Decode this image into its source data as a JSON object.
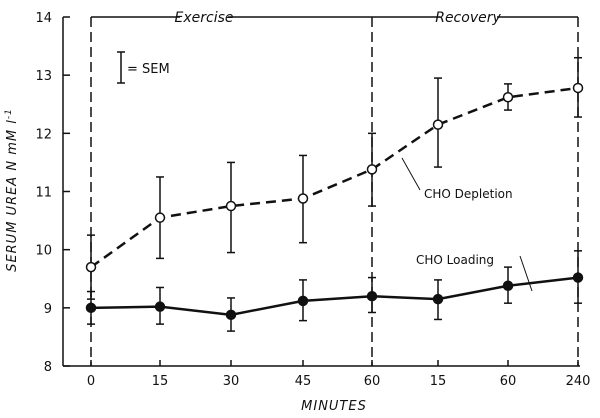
{
  "chart_data": {
    "type": "line",
    "title": "",
    "xlabel": "MINUTES",
    "ylabel": "SERUM UREA N mM l",
    "ylabel_superscript": "-1",
    "categories": [
      "0",
      "15",
      "30",
      "45",
      "60",
      "15",
      "60",
      "240"
    ],
    "phases": [
      {
        "label": "Exercise",
        "categories": [
          "0",
          "15",
          "30",
          "45",
          "60"
        ]
      },
      {
        "label": "Recovery",
        "categories": [
          "60",
          "15",
          "60",
          "240"
        ]
      }
    ],
    "ylim": [
      8,
      14
    ],
    "yticks": [
      8,
      9,
      10,
      11,
      12,
      13,
      14
    ],
    "grid": false,
    "error_legend": "= SEM",
    "series": [
      {
        "name": "CHO Depletion",
        "marker": "open-circle",
        "line": "dashed",
        "values": [
          9.7,
          10.55,
          10.75,
          10.88,
          11.38,
          12.15,
          12.62,
          12.78
        ],
        "sem_low": [
          9.15,
          9.85,
          9.95,
          10.12,
          10.75,
          11.42,
          12.4,
          12.28
        ],
        "sem_high": [
          10.25,
          11.25,
          11.5,
          11.62,
          12.0,
          12.95,
          12.85,
          13.3
        ]
      },
      {
        "name": "CHO Loading",
        "marker": "filled-circle",
        "line": "solid",
        "values": [
          9.0,
          9.02,
          8.88,
          9.12,
          9.2,
          9.15,
          9.38,
          9.52
        ],
        "sem_low": [
          8.72,
          8.72,
          8.6,
          8.78,
          8.92,
          8.8,
          9.08,
          9.08
        ],
        "sem_high": [
          9.28,
          9.35,
          9.17,
          9.48,
          9.52,
          9.48,
          9.7,
          9.98
        ]
      }
    ]
  }
}
